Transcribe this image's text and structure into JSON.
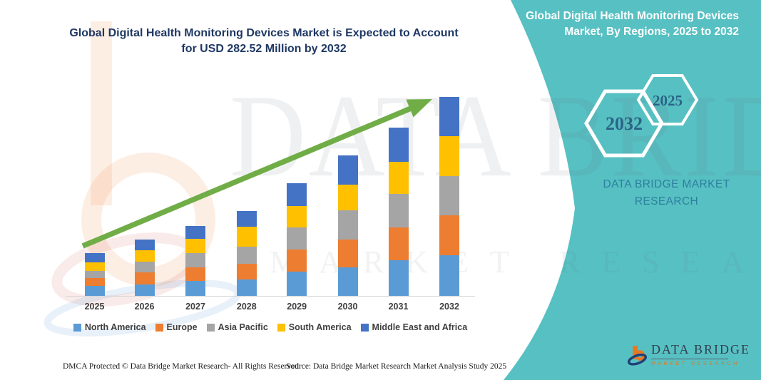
{
  "colors": {
    "panel_teal": "#57C0C2",
    "title_blue": "#1F3864",
    "arrow_green": "#70AD47",
    "axis_text": "#404040",
    "hexagon_text": "#2A6486",
    "brand_text": "#2E7FA0",
    "logo_navy": "#1F3F77",
    "logo_orange": "#E87722"
  },
  "title": {
    "text": "Global Digital Health Monitoring Devices Market is Expected to Account for USD 282.52 Million by 2032"
  },
  "side_panel": {
    "heading": "Global Digital Health Monitoring Devices Market, By Regions, 2025 to 2032",
    "hexagons": [
      {
        "label": "2032"
      },
      {
        "label": "2025"
      }
    ],
    "brand_text": "DATA BRIDGE MARKET RESEARCH"
  },
  "watermark": {
    "line1": "DATA BRIDGE",
    "line2": "MARKET RESEARCH"
  },
  "chart_data": {
    "type": "bar",
    "stacked": true,
    "title": "Global Digital Health Monitoring Devices Market is Expected to Account for USD 282.52 Million by 2032",
    "unit": "USD Million",
    "categories": [
      "2025",
      "2026",
      "2027",
      "2028",
      "2029",
      "2030",
      "2031",
      "2032"
    ],
    "series": [
      {
        "name": "North America",
        "color": "#5B9BD5",
        "values": [
          14.5,
          16.5,
          21.0,
          23.0,
          34.5,
          40.0,
          51.0,
          57.5
        ]
      },
      {
        "name": "Europe",
        "color": "#ED7D31",
        "values": [
          10.5,
          16.5,
          19.5,
          23.0,
          31.5,
          40.0,
          46.5,
          56.5
        ]
      },
      {
        "name": "Asia Pacific",
        "color": "#A5A5A5",
        "values": [
          10.5,
          16.0,
          20.5,
          24.0,
          31.0,
          41.5,
          47.5,
          56.0
        ]
      },
      {
        "name": "South America",
        "color": "#FFC000",
        "values": [
          12.0,
          15.5,
          19.5,
          28.0,
          31.0,
          36.0,
          45.0,
          56.5
        ]
      },
      {
        "name": "Middle East and Africa",
        "color": "#4472C4",
        "values": [
          13.5,
          15.5,
          18.5,
          22.0,
          31.5,
          41.5,
          48.5,
          56.0
        ]
      }
    ],
    "estimated_totals": [
      61,
      80,
      99,
      120,
      159.5,
      199,
      238.5,
      282.5
    ],
    "xlabel": "",
    "ylabel": "",
    "ylim": [
      0,
      290
    ],
    "gridlines": false,
    "y_axis_visible": false,
    "legend_position": "bottom",
    "annotations": [
      "green upward trend arrow across bars"
    ]
  },
  "logo": {
    "name_line": "DATA BRIDGE",
    "sub_line": "MARKET RESEARCH"
  },
  "footer": {
    "left": "DMCA Protected © Data Bridge Market Research-  All Rights Reserved.",
    "right": "Source: Data Bridge Market Research  Market Analysis Study 2025"
  }
}
